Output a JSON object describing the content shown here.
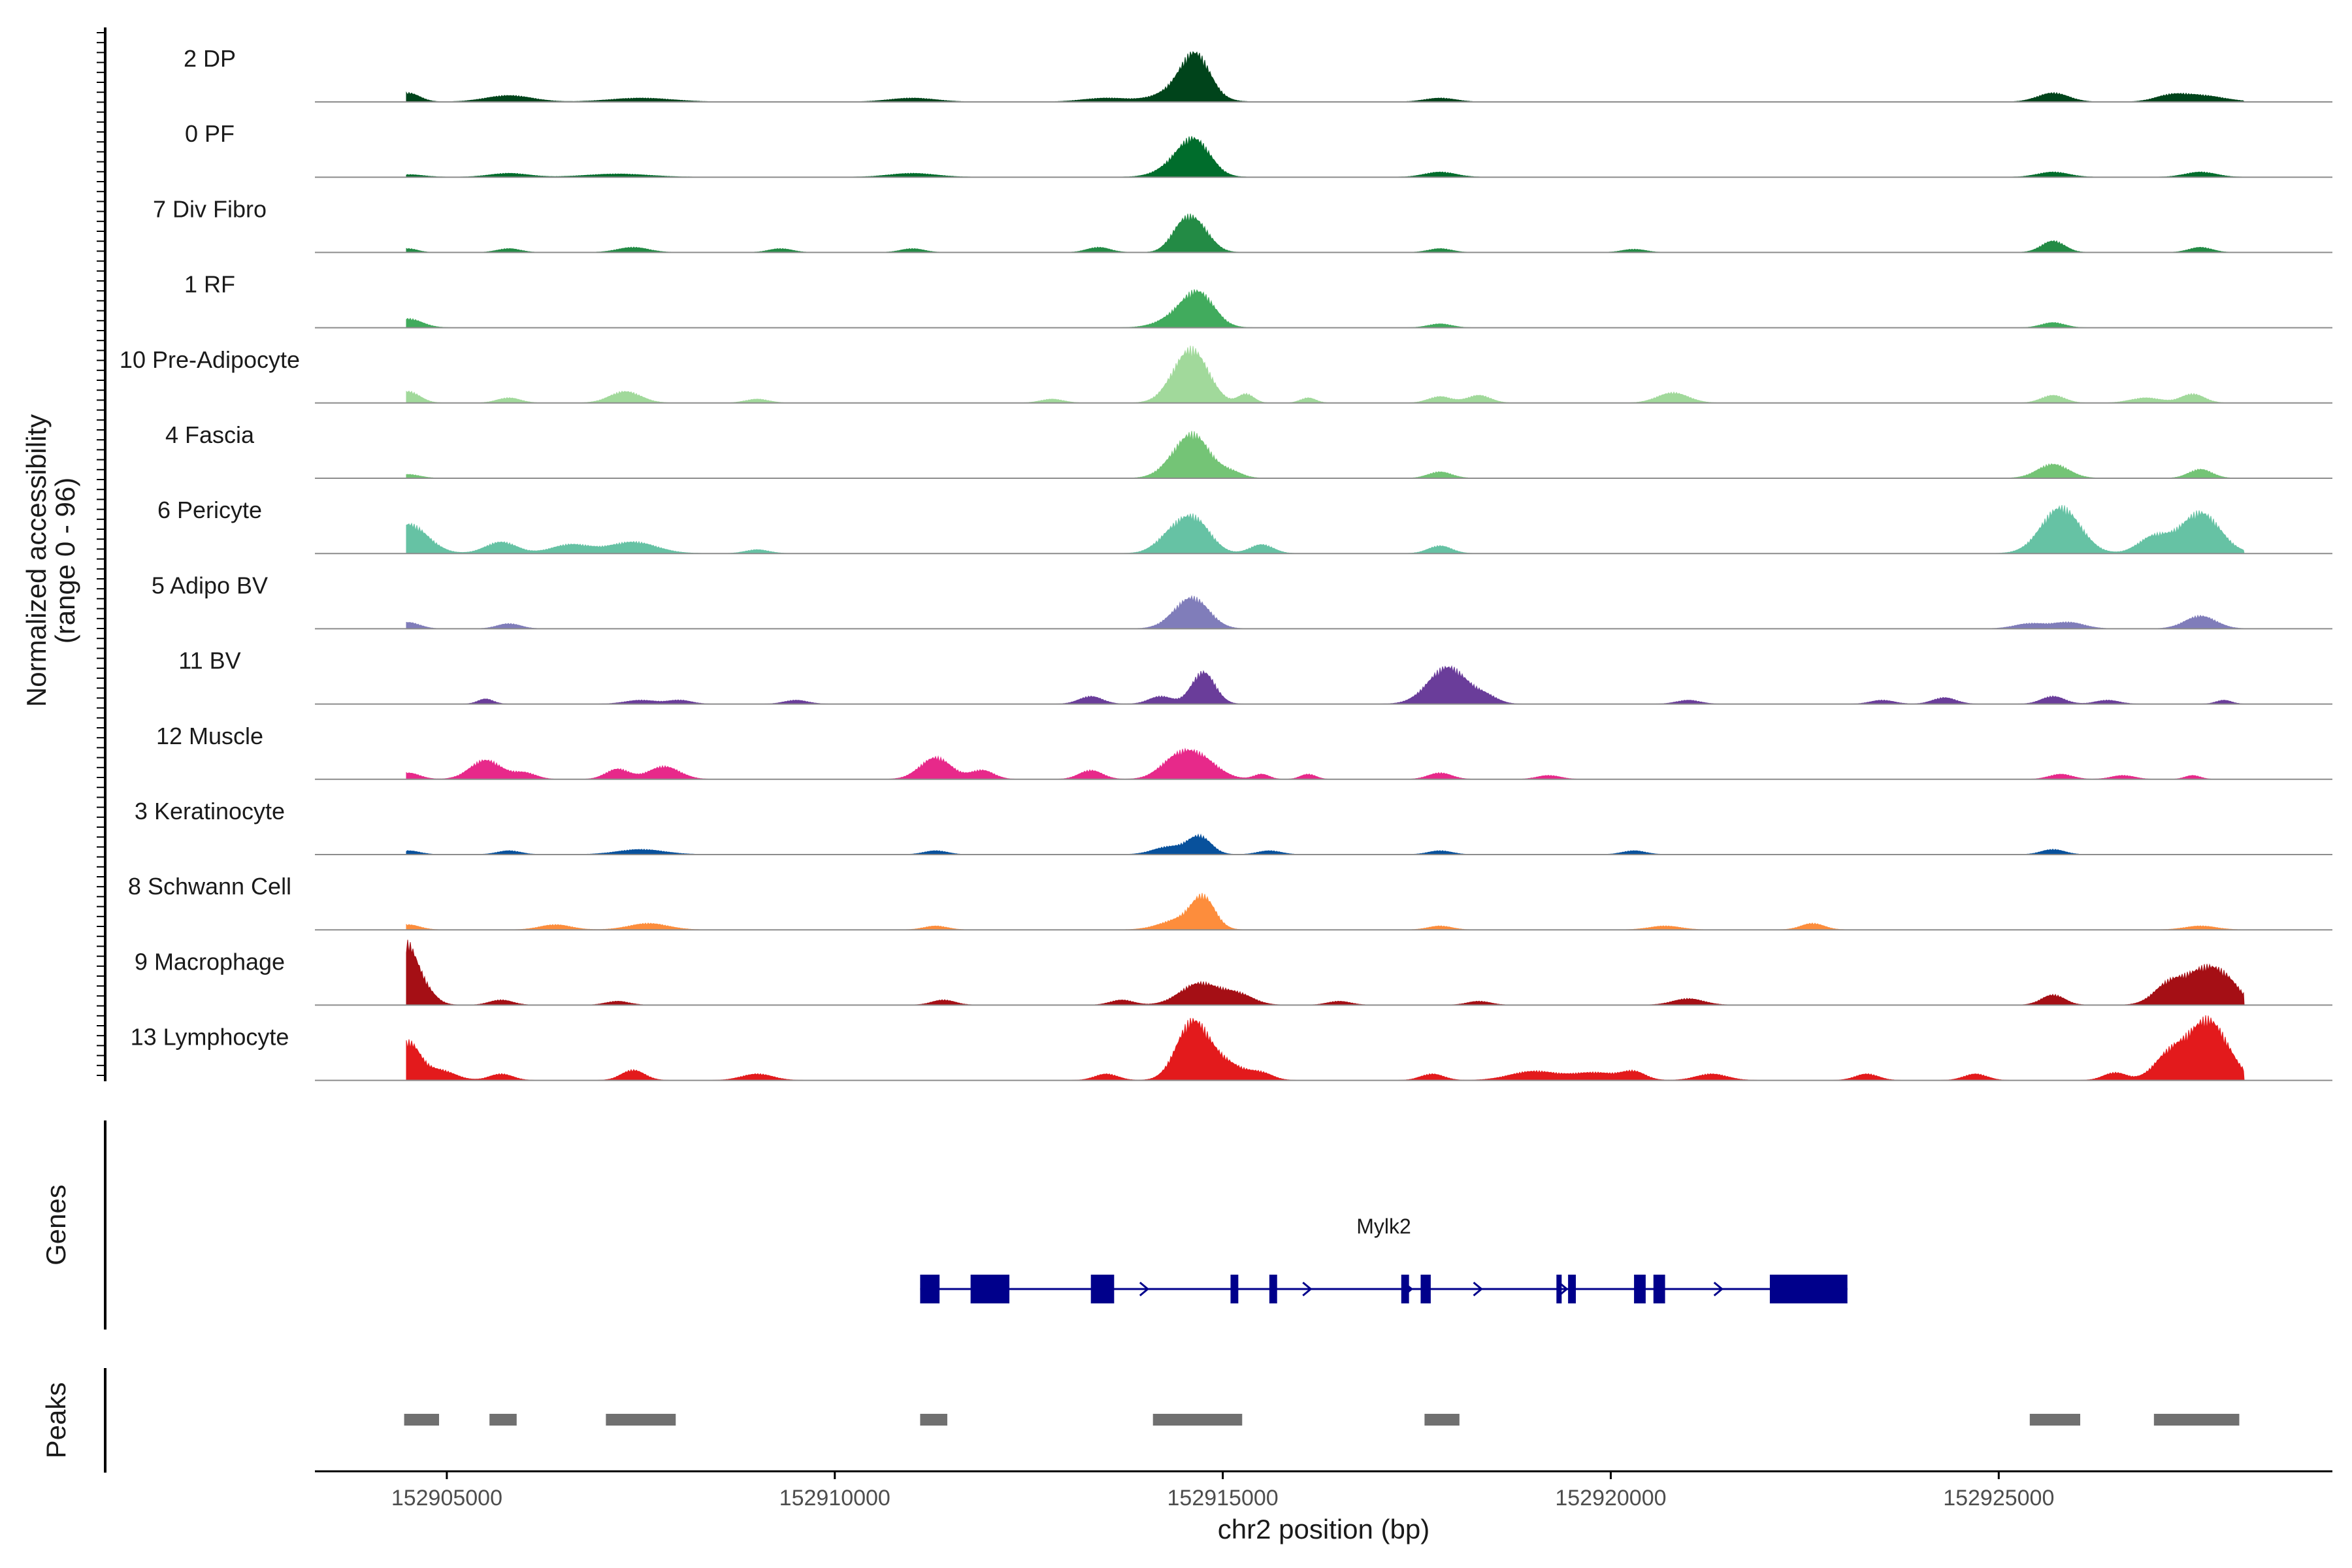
{
  "chart_data": {
    "type": "area",
    "title": "",
    "y_axis_label_line1": "Normalized accessibility",
    "y_axis_label_line2": "(range 0 - 96)",
    "y_range": [
      0,
      96
    ],
    "x_axis_label": "chr2 position (bp)",
    "x_range": [
      152903300,
      152929300
    ],
    "x_ticks": [
      152905000,
      152910000,
      152915000,
      152920000,
      152925000
    ],
    "x_tick_labels": [
      "152905000",
      "152910000",
      "152915000",
      "152920000",
      "152925000"
    ],
    "genes_label": "Genes",
    "peaks_label": "Peaks",
    "tracks": [
      {
        "name": "2 DP",
        "color": "#00441b",
        "peaks": [
          [
            152904500,
            14,
            150
          ],
          [
            152905800,
            10,
            300
          ],
          [
            152907500,
            6,
            400
          ],
          [
            152911000,
            6,
            300
          ],
          [
            152913500,
            6,
            300
          ],
          [
            152914650,
            58,
            180
          ],
          [
            152914500,
            22,
            300
          ],
          [
            152917800,
            6,
            200
          ],
          [
            152925700,
            14,
            200
          ],
          [
            152927200,
            8,
            200
          ],
          [
            152927600,
            10,
            300
          ]
        ]
      },
      {
        "name": "0 PF",
        "color": "#006d2c",
        "peaks": [
          [
            152904500,
            4,
            200
          ],
          [
            152905800,
            6,
            250
          ],
          [
            152907200,
            5,
            400
          ],
          [
            152911000,
            6,
            300
          ],
          [
            152914650,
            46,
            200
          ],
          [
            152914450,
            20,
            250
          ],
          [
            152917800,
            8,
            200
          ],
          [
            152925700,
            8,
            200
          ],
          [
            152927600,
            8,
            200
          ]
        ]
      },
      {
        "name": "7 Div Fibro",
        "color": "#238b45",
        "peaks": [
          [
            152904500,
            6,
            120
          ],
          [
            152905800,
            6,
            150
          ],
          [
            152907400,
            8,
            200
          ],
          [
            152909300,
            6,
            150
          ],
          [
            152911000,
            6,
            150
          ],
          [
            152913400,
            8,
            150
          ],
          [
            152914650,
            44,
            180
          ],
          [
            152914450,
            24,
            150
          ],
          [
            152917800,
            6,
            150
          ],
          [
            152920300,
            5,
            150
          ],
          [
            152925700,
            18,
            150
          ],
          [
            152927600,
            8,
            150
          ]
        ]
      },
      {
        "name": "1 RF",
        "color": "#41ab5d",
        "peaks": [
          [
            152904500,
            14,
            180
          ],
          [
            152914700,
            46,
            200
          ],
          [
            152914450,
            18,
            250
          ],
          [
            152917800,
            6,
            150
          ],
          [
            152925700,
            8,
            150
          ]
        ]
      },
      {
        "name": "10 Pre-Adipocyte",
        "color": "#a1d99b",
        "peaks": [
          [
            152904500,
            18,
            150
          ],
          [
            152905800,
            8,
            150
          ],
          [
            152907300,
            18,
            200
          ],
          [
            152909000,
            6,
            150
          ],
          [
            152912800,
            6,
            150
          ],
          [
            152914650,
            62,
            200
          ],
          [
            152914450,
            32,
            200
          ],
          [
            152915300,
            14,
            100
          ],
          [
            152916100,
            8,
            100
          ],
          [
            152917800,
            10,
            150
          ],
          [
            152918300,
            12,
            150
          ],
          [
            152920800,
            16,
            200
          ],
          [
            152925700,
            12,
            150
          ],
          [
            152926900,
            8,
            200
          ],
          [
            152927500,
            14,
            150
          ]
        ]
      },
      {
        "name": "4 Fascia",
        "color": "#74c476",
        "peaks": [
          [
            152904500,
            6,
            150
          ],
          [
            152914650,
            58,
            200
          ],
          [
            152914400,
            22,
            200
          ],
          [
            152915100,
            10,
            150
          ],
          [
            152917800,
            10,
            150
          ],
          [
            152925700,
            22,
            200
          ],
          [
            152927600,
            14,
            150
          ]
        ]
      },
      {
        "name": "6 Pericyte",
        "color": "#66c2a4",
        "peaks": [
          [
            152904500,
            46,
            250
          ],
          [
            152905700,
            18,
            200
          ],
          [
            152906600,
            14,
            250
          ],
          [
            152907400,
            18,
            300
          ],
          [
            152909000,
            6,
            150
          ],
          [
            152914650,
            48,
            200
          ],
          [
            152914350,
            28,
            200
          ],
          [
            152915500,
            14,
            150
          ],
          [
            152917800,
            12,
            150
          ],
          [
            152925800,
            72,
            250
          ],
          [
            152927000,
            26,
            200
          ],
          [
            152927600,
            64,
            250
          ]
        ]
      },
      {
        "name": "5 Adipo BV",
        "color": "#807dba",
        "peaks": [
          [
            152904500,
            10,
            150
          ],
          [
            152905800,
            8,
            150
          ],
          [
            152914650,
            38,
            200
          ],
          [
            152914450,
            16,
            200
          ],
          [
            152925400,
            8,
            200
          ],
          [
            152925900,
            10,
            200
          ],
          [
            152927600,
            20,
            200
          ]
        ]
      },
      {
        "name": "11 BV",
        "color": "#6a3d9a",
        "peaks": [
          [
            152905500,
            8,
            100
          ],
          [
            152907500,
            6,
            200
          ],
          [
            152908000,
            6,
            150
          ],
          [
            152909500,
            6,
            150
          ],
          [
            152913300,
            12,
            150
          ],
          [
            152914750,
            50,
            150
          ],
          [
            152914200,
            12,
            150
          ],
          [
            152917900,
            58,
            250
          ],
          [
            152918400,
            10,
            150
          ],
          [
            152921000,
            6,
            150
          ],
          [
            152923500,
            6,
            150
          ],
          [
            152924300,
            10,
            150
          ],
          [
            152925700,
            12,
            150
          ],
          [
            152926400,
            6,
            150
          ],
          [
            152927900,
            6,
            100
          ]
        ]
      },
      {
        "name": "12 Muscle",
        "color": "#e7298a",
        "peaks": [
          [
            152904500,
            10,
            150
          ],
          [
            152905500,
            30,
            200
          ],
          [
            152906000,
            10,
            150
          ],
          [
            152907200,
            16,
            150
          ],
          [
            152907800,
            20,
            200
          ],
          [
            152911300,
            34,
            200
          ],
          [
            152911900,
            14,
            150
          ],
          [
            152913300,
            14,
            150
          ],
          [
            152914650,
            38,
            250
          ],
          [
            152914350,
            18,
            200
          ],
          [
            152915500,
            8,
            100
          ],
          [
            152916100,
            8,
            100
          ],
          [
            152917800,
            10,
            150
          ],
          [
            152919200,
            6,
            150
          ],
          [
            152925800,
            8,
            150
          ],
          [
            152926600,
            6,
            150
          ],
          [
            152927500,
            6,
            100
          ]
        ]
      },
      {
        "name": "3 Keratinocyte",
        "color": "#08519c",
        "peaks": [
          [
            152904500,
            6,
            150
          ],
          [
            152905800,
            6,
            150
          ],
          [
            152907500,
            8,
            300
          ],
          [
            152911300,
            6,
            150
          ],
          [
            152914700,
            28,
            150
          ],
          [
            152914300,
            12,
            200
          ],
          [
            152915600,
            6,
            150
          ],
          [
            152917800,
            6,
            150
          ],
          [
            152920300,
            6,
            150
          ],
          [
            152925700,
            8,
            150
          ]
        ]
      },
      {
        "name": "8 Schwann Cell",
        "color": "#fd8d3c",
        "peaks": [
          [
            152904500,
            8,
            150
          ],
          [
            152906400,
            8,
            200
          ],
          [
            152907600,
            10,
            250
          ],
          [
            152911300,
            6,
            150
          ],
          [
            152914750,
            46,
            150
          ],
          [
            152914450,
            16,
            250
          ],
          [
            152917800,
            6,
            150
          ],
          [
            152920700,
            6,
            200
          ],
          [
            152922600,
            10,
            150
          ],
          [
            152927600,
            6,
            200
          ]
        ]
      },
      {
        "name": "9 Macrophage",
        "color": "#a50f15",
        "peaks": [
          [
            152904450,
            94,
            150
          ],
          [
            152904700,
            22,
            150
          ],
          [
            152905700,
            8,
            150
          ],
          [
            152907200,
            6,
            150
          ],
          [
            152911400,
            8,
            150
          ],
          [
            152913700,
            8,
            150
          ],
          [
            152914700,
            34,
            250
          ],
          [
            152915200,
            16,
            200
          ],
          [
            152916500,
            6,
            150
          ],
          [
            152918300,
            6,
            150
          ],
          [
            152921000,
            10,
            200
          ],
          [
            152925700,
            16,
            150
          ],
          [
            152927200,
            32,
            200
          ],
          [
            152927700,
            58,
            250
          ],
          [
            152928000,
            12,
            150
          ]
        ]
      },
      {
        "name": "13 Lymphocyte",
        "color": "#e31a1c",
        "peaks": [
          [
            152904500,
            58,
            150
          ],
          [
            152904900,
            16,
            200
          ],
          [
            152905700,
            10,
            150
          ],
          [
            152907400,
            16,
            150
          ],
          [
            152909000,
            10,
            200
          ],
          [
            152913500,
            10,
            150
          ],
          [
            152914600,
            86,
            200
          ],
          [
            152915000,
            28,
            250
          ],
          [
            152915500,
            10,
            150
          ],
          [
            152917700,
            10,
            150
          ],
          [
            152919000,
            14,
            300
          ],
          [
            152919800,
            12,
            300
          ],
          [
            152920300,
            12,
            150
          ],
          [
            152921300,
            10,
            200
          ],
          [
            152923300,
            10,
            150
          ],
          [
            152924700,
            10,
            150
          ],
          [
            152926500,
            12,
            150
          ],
          [
            152927200,
            38,
            200
          ],
          [
            152927700,
            94,
            250
          ]
        ]
      }
    ],
    "gene": {
      "name": "Mylk2",
      "strand": "+",
      "start": 152911100,
      "end": 152923050,
      "exons": [
        [
          152911100,
          152911350
        ],
        [
          152911750,
          152912250
        ],
        [
          152913300,
          152913600
        ],
        [
          152915100,
          152915200
        ],
        [
          152915600,
          152915700
        ],
        [
          152917300,
          152917400
        ],
        [
          152917550,
          152917680
        ],
        [
          152919300,
          152919330
        ],
        [
          152919450,
          152919550
        ],
        [
          152920300,
          152920450
        ],
        [
          152920550,
          152920700
        ],
        [
          152922050,
          152923050
        ]
      ],
      "arrows": [
        152911200,
        152914000,
        152916100,
        152917400,
        152918300,
        152919400,
        152920400,
        152921400
      ]
    },
    "peaks_track": [
      [
        152904450,
        152904900
      ],
      [
        152905550,
        152905900
      ],
      [
        152907050,
        152907950
      ],
      [
        152911100,
        152911450
      ],
      [
        152914100,
        152915250
      ],
      [
        152917600,
        152918050
      ],
      [
        152925400,
        152926050
      ],
      [
        152927000,
        152928100
      ]
    ]
  },
  "colors": {
    "axis": "#000000",
    "baseline": "#8c8c8c",
    "gene": "#00008b",
    "peak_bar": "#707070"
  }
}
